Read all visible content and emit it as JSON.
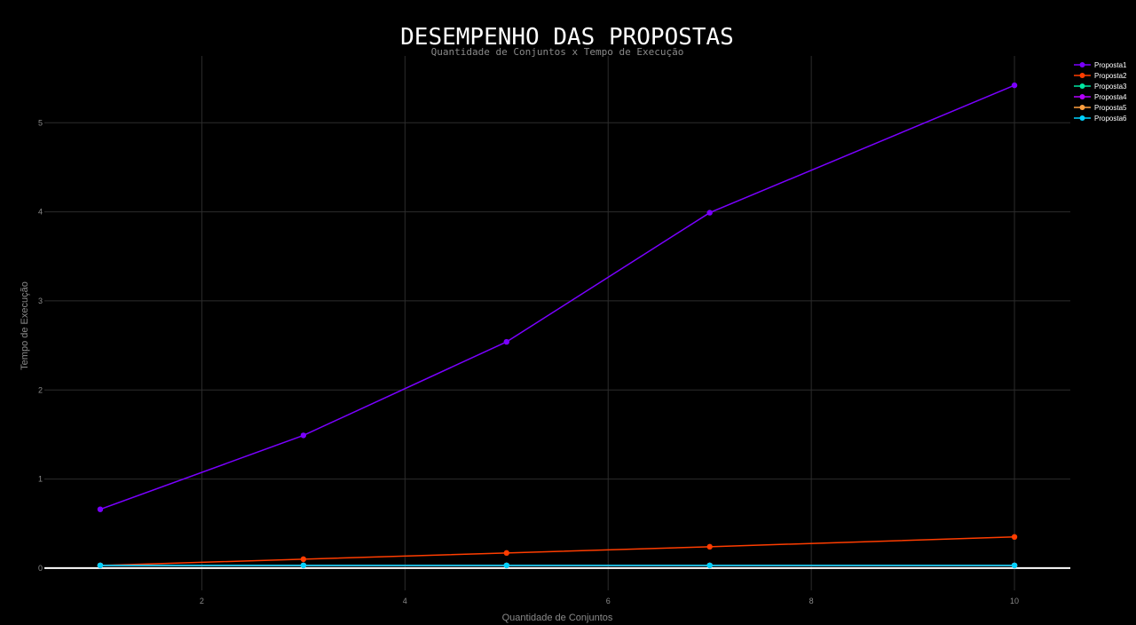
{
  "chart_data": {
    "type": "line",
    "title": "DESEMPENHO DAS PROPOSTAS",
    "subtitle": "Quantidade de Conjuntos x Tempo de Execução",
    "xlabel": "Quantidade de Conjuntos",
    "ylabel": "Tempo de Execução",
    "x": [
      1,
      3,
      5,
      7,
      10
    ],
    "xlim": [
      0.45,
      10.55
    ],
    "ylim": [
      -0.25,
      5.75
    ],
    "xticks": [
      2,
      4,
      6,
      8,
      10
    ],
    "yticks": [
      0,
      1,
      2,
      3,
      4,
      5
    ],
    "grid": true,
    "legend_position": "top-right",
    "series": [
      {
        "name": "Proposta1",
        "color": "#7a00ff",
        "values": [
          0.66,
          1.49,
          2.54,
          3.99,
          5.42
        ]
      },
      {
        "name": "Proposta2",
        "color": "#ff3d00",
        "values": [
          0.03,
          0.1,
          0.17,
          0.24,
          0.35
        ]
      },
      {
        "name": "Proposta3",
        "color": "#00e5a0",
        "values": [
          0.03,
          0.03,
          0.03,
          0.03,
          0.03
        ]
      },
      {
        "name": "Proposta4",
        "color": "#b400ff",
        "values": [
          0.03,
          0.03,
          0.03,
          0.03,
          0.03
        ]
      },
      {
        "name": "Proposta5",
        "color": "#ffa040",
        "values": [
          0.03,
          0.03,
          0.03,
          0.03,
          0.03
        ]
      },
      {
        "name": "Proposta6",
        "color": "#00d2ff",
        "values": [
          0.03,
          0.03,
          0.03,
          0.03,
          0.03
        ]
      }
    ]
  }
}
